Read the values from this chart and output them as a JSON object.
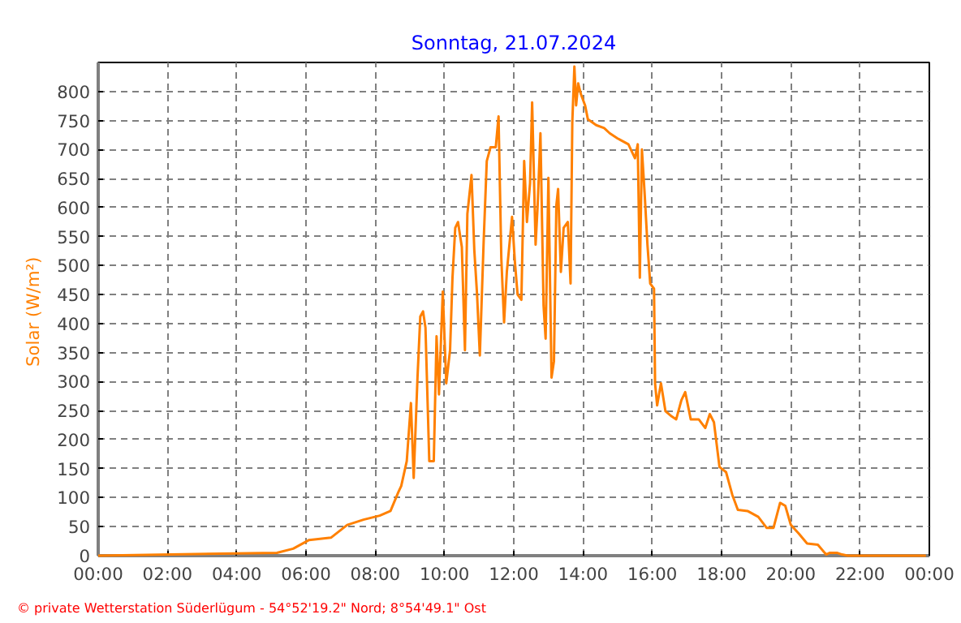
{
  "chart_data": {
    "type": "line",
    "title": "Sonntag, 21.07.2024",
    "ylabel": "Solar  (W/m²)",
    "annotations": [
      "© private Wetterstation Süderlügum  -  54°52'19.2\" Nord; 8°54'49.1\" Ost"
    ],
    "xlim": [
      0,
      24
    ],
    "ylim": [
      0,
      850
    ],
    "xticks": [
      {
        "value": 0,
        "label": "00:00"
      },
      {
        "value": 2,
        "label": "02:00"
      },
      {
        "value": 4,
        "label": "04:00"
      },
      {
        "value": 6,
        "label": "06:00"
      },
      {
        "value": 8,
        "label": "08:00"
      },
      {
        "value": 10,
        "label": "10:00"
      },
      {
        "value": 12,
        "label": "12:00"
      },
      {
        "value": 14,
        "label": "14:00"
      },
      {
        "value": 16,
        "label": "16:00"
      },
      {
        "value": 18,
        "label": "18:00"
      },
      {
        "value": 20,
        "label": "20:00"
      },
      {
        "value": 22,
        "label": "22:00"
      },
      {
        "value": 24,
        "label": "00:00"
      }
    ],
    "yticks": [
      0,
      50,
      100,
      150,
      200,
      250,
      300,
      350,
      400,
      450,
      500,
      550,
      600,
      650,
      700,
      750,
      800
    ],
    "grid": true,
    "marker": "none",
    "line_style": "solid",
    "x": [
      0,
      5.16,
      5.63,
      6.09,
      6.72,
      7.19,
      7.66,
      8.13,
      8.44,
      8.67,
      8.75,
      8.91,
      9.03,
      9.11,
      9.22,
      9.3,
      9.38,
      9.45,
      9.56,
      9.69,
      9.77,
      9.84,
      9.95,
      10.05,
      10.16,
      10.23,
      10.31,
      10.39,
      10.5,
      10.59,
      10.66,
      10.78,
      10.86,
      10.94,
      11.02,
      11.13,
      11.22,
      11.33,
      11.48,
      11.56,
      11.64,
      11.72,
      11.8,
      11.95,
      12.03,
      12.11,
      12.22,
      12.3,
      12.38,
      12.47,
      12.53,
      12.63,
      12.69,
      12.77,
      12.86,
      12.92,
      13.0,
      13.09,
      13.16,
      13.23,
      13.28,
      13.36,
      13.44,
      13.56,
      13.64,
      13.69,
      13.75,
      13.8,
      13.86,
      13.94,
      14.06,
      14.14,
      14.38,
      14.61,
      14.77,
      15.0,
      15.31,
      15.5,
      15.58,
      15.64,
      15.7,
      15.78,
      15.86,
      15.94,
      16.05,
      16.08,
      16.14,
      16.25,
      16.38,
      16.56,
      16.69,
      16.84,
      16.95,
      17.11,
      17.34,
      17.53,
      17.66,
      17.78,
      17.94,
      18.13,
      18.31,
      18.47,
      18.75,
      19.06,
      19.3,
      19.5,
      19.69,
      19.84,
      20.0,
      20.23,
      20.47,
      20.78,
      21.02,
      21.13,
      21.33,
      21.48,
      21.64,
      23.9
    ],
    "series": [
      {
        "color": "#ff8000",
        "values": [
          0,
          5,
          12,
          27,
          31,
          53,
          62,
          69,
          77,
          110,
          120,
          163,
          263,
          134,
          307,
          412,
          421,
          393,
          163,
          163,
          378,
          278,
          455,
          297,
          354,
          479,
          565,
          575,
          532,
          354,
          589,
          656,
          527,
          450,
          345,
          541,
          680,
          704,
          704,
          757,
          513,
          402,
          489,
          584,
          508,
          450,
          441,
          680,
          575,
          642,
          781,
          536,
          604,
          728,
          431,
          374,
          651,
          307,
          335,
          604,
          632,
          489,
          565,
          575,
          469,
          747,
          843,
          776,
          814,
          795,
          776,
          752,
          742,
          737,
          728,
          719,
          709,
          685,
          709,
          479,
          700,
          623,
          536,
          469,
          460,
          297,
          259,
          297,
          249,
          240,
          235,
          268,
          282,
          235,
          235,
          220,
          244,
          230,
          153,
          144,
          105,
          79,
          77,
          67,
          48,
          48,
          91,
          86,
          53,
          38,
          21,
          19,
          2,
          5,
          5,
          2,
          0,
          0
        ]
      }
    ]
  }
}
